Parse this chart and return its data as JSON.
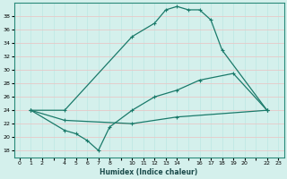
{
  "xlabel": "Humidex (Indice chaleur)",
  "bg_color": "#d4f0ec",
  "line_color": "#1a7a6a",
  "grid_minor_color": "#c0e8e4",
  "grid_major_color": "#e8c8c8",
  "xlim": [
    -0.5,
    23.5
  ],
  "ylim": [
    17,
    40
  ],
  "xticks": [
    0,
    1,
    2,
    4,
    5,
    6,
    7,
    8,
    10,
    11,
    12,
    13,
    14,
    16,
    17,
    18,
    19,
    20,
    22,
    23
  ],
  "yticks": [
    18,
    20,
    22,
    24,
    26,
    28,
    30,
    32,
    34,
    36,
    38
  ],
  "line1_x": [
    1,
    4,
    10,
    12,
    13,
    14,
    15,
    16,
    17,
    18,
    22
  ],
  "line1_y": [
    24,
    24,
    35,
    37,
    39,
    39.5,
    39,
    39,
    37.5,
    33,
    24
  ],
  "line2_x": [
    1,
    4,
    5,
    6,
    7,
    8,
    10,
    12,
    14,
    16,
    19,
    22
  ],
  "line2_y": [
    24,
    21,
    20.5,
    19.5,
    18,
    21.5,
    24,
    26,
    27,
    28.5,
    29.5,
    24
  ],
  "line3_x": [
    1,
    4,
    10,
    14,
    22
  ],
  "line3_y": [
    24,
    22.5,
    22,
    23,
    24
  ]
}
